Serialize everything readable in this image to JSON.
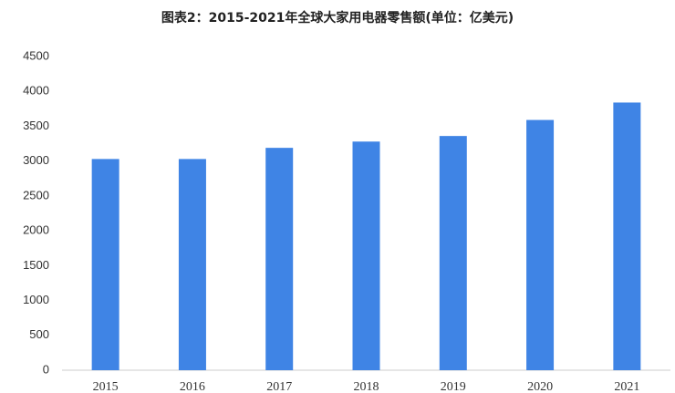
{
  "chart_data": {
    "type": "bar",
    "title": "图表2：2015-2021年全球大家用电器零售额(单位：亿美元)",
    "categories": [
      "2015",
      "2016",
      "2017",
      "2018",
      "2019",
      "2020",
      "2021"
    ],
    "values": [
      3030,
      3030,
      3190,
      3280,
      3360,
      3590,
      3840
    ],
    "color": "#3f84e5",
    "ylim": [
      0,
      4500
    ],
    "yticks": [
      0,
      500,
      1000,
      1500,
      2000,
      2500,
      3000,
      3500,
      4000,
      4500
    ],
    "grid": false
  }
}
